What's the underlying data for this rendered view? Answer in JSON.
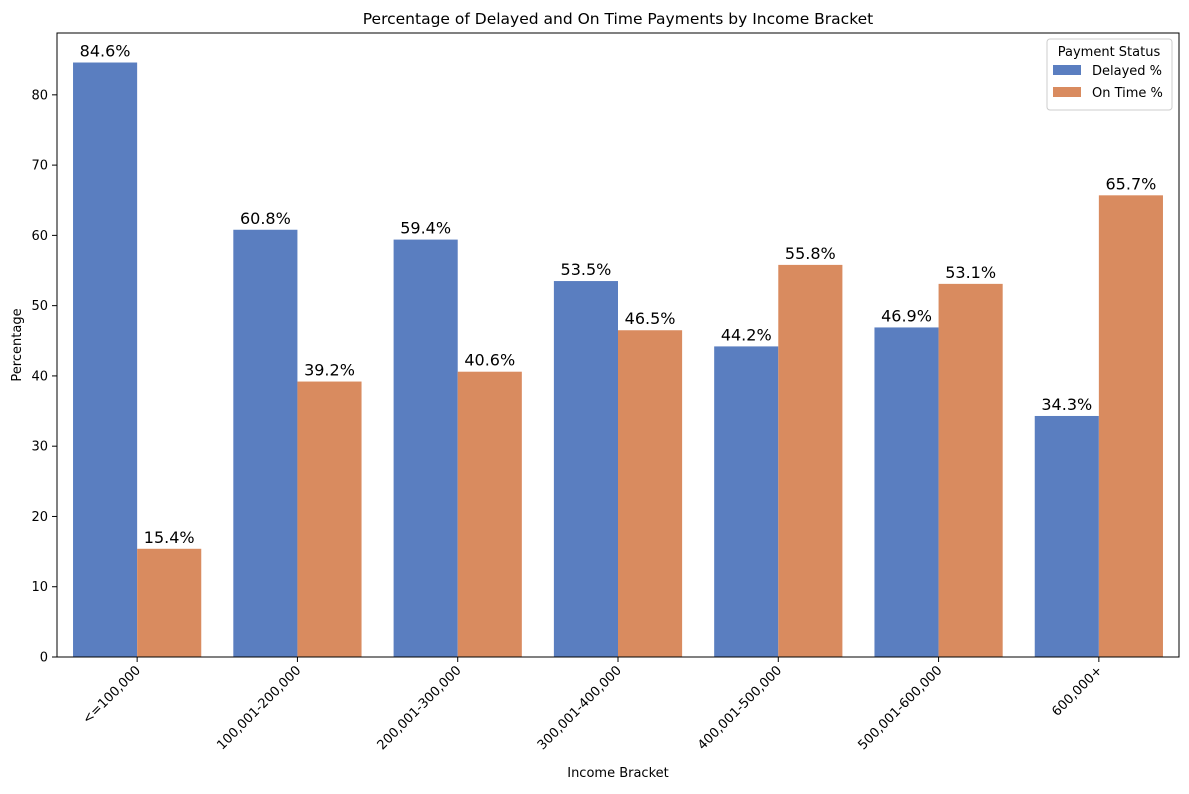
{
  "chart_data": {
    "type": "bar",
    "title": "Percentage of Delayed and On Time Payments by Income Bracket",
    "xlabel": "Income Bracket",
    "ylabel": "Percentage",
    "ylim": [
      0,
      88.8
    ],
    "yticks": [
      0,
      10,
      20,
      30,
      40,
      50,
      60,
      70,
      80
    ],
    "grid": false,
    "legend_placement": "top-right",
    "legend_title": "Payment Status",
    "categories": [
      "<=100,000",
      "100,001-200,000",
      "200,001-300,000",
      "300,001-400,000",
      "400,001-500,000",
      "500,001-600,000",
      "600,000+"
    ],
    "series": [
      {
        "name": "Delayed %",
        "color": "#5a7ec0",
        "values": [
          84.6,
          60.8,
          59.4,
          53.5,
          44.2,
          46.9,
          34.3
        ],
        "labels": [
          "84.6%",
          "60.8%",
          "59.4%",
          "53.5%",
          "44.2%",
          "46.9%",
          "34.3%"
        ]
      },
      {
        "name": "On Time %",
        "color": "#d98b5f",
        "values": [
          15.4,
          39.2,
          40.6,
          46.5,
          55.8,
          53.1,
          65.7
        ],
        "labels": [
          "15.4%",
          "39.2%",
          "40.6%",
          "46.5%",
          "55.8%",
          "53.1%",
          "65.7%"
        ]
      }
    ]
  }
}
